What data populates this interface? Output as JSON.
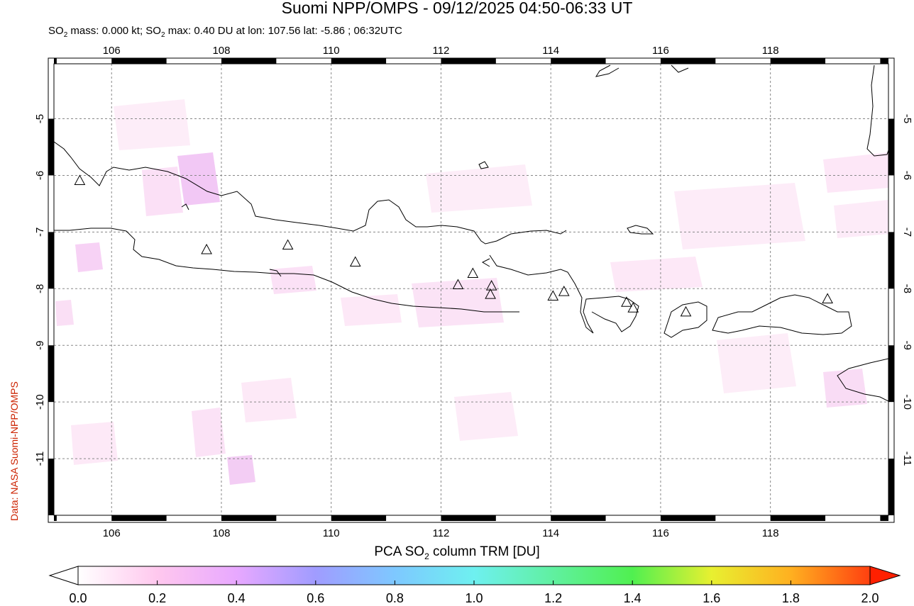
{
  "header": {
    "title": "Suomi NPP/OMPS - 09/12/2025 04:50-06:33 UT",
    "subtitle_prefix": "SO",
    "subtitle_sub": "2",
    "subtitle_mid": " mass: 0.000 kt; SO",
    "subtitle_sub2": "2",
    "subtitle_rest": " max: 0.40 DU at lon: 107.56 lat: -5.86 ; 06:32UTC"
  },
  "credit": "Data: NASA Suomi-NPP/OMPS",
  "map": {
    "lon_ticks": [
      "106",
      "108",
      "110",
      "112",
      "114",
      "116",
      "118"
    ],
    "lat_ticks": [
      "-5",
      "-6",
      "-7",
      "-8",
      "-9",
      "-10",
      "-11"
    ],
    "lon_range": [
      104.95,
      120.15
    ],
    "lat_range": [
      -12.0,
      -4.03
    ],
    "volcanoes": [
      {
        "lon": 105.42,
        "lat": -6.1
      },
      {
        "lon": 107.73,
        "lat": -7.32
      },
      {
        "lon": 109.21,
        "lat": -7.24
      },
      {
        "lon": 110.44,
        "lat": -7.54
      },
      {
        "lon": 112.31,
        "lat": -7.94
      },
      {
        "lon": 112.58,
        "lat": -7.74
      },
      {
        "lon": 112.92,
        "lat": -7.96
      },
      {
        "lon": 112.9,
        "lat": -8.11
      },
      {
        "lon": 114.04,
        "lat": -8.14
      },
      {
        "lon": 114.24,
        "lat": -8.06
      },
      {
        "lon": 115.38,
        "lat": -8.25
      },
      {
        "lon": 115.5,
        "lat": -8.35
      },
      {
        "lon": 116.46,
        "lat": -8.42
      },
      {
        "lon": 119.04,
        "lat": -8.19
      }
    ]
  },
  "colorbar": {
    "label_prefix": "PCA SO",
    "label_sub": "2",
    "label_rest": " column TRM [DU]",
    "ticks": [
      "0.0",
      "0.2",
      "0.4",
      "0.6",
      "0.8",
      "1.0",
      "1.2",
      "1.4",
      "1.6",
      "1.8",
      "2.0"
    ],
    "colors": [
      "#ffffff",
      "#ffc8ee",
      "#e8a8ff",
      "#a09cff",
      "#7ec8ff",
      "#6ef0f0",
      "#60f0a0",
      "#50f050",
      "#e8f030",
      "#ffb020",
      "#ff4010",
      "#ff2000"
    ]
  }
}
